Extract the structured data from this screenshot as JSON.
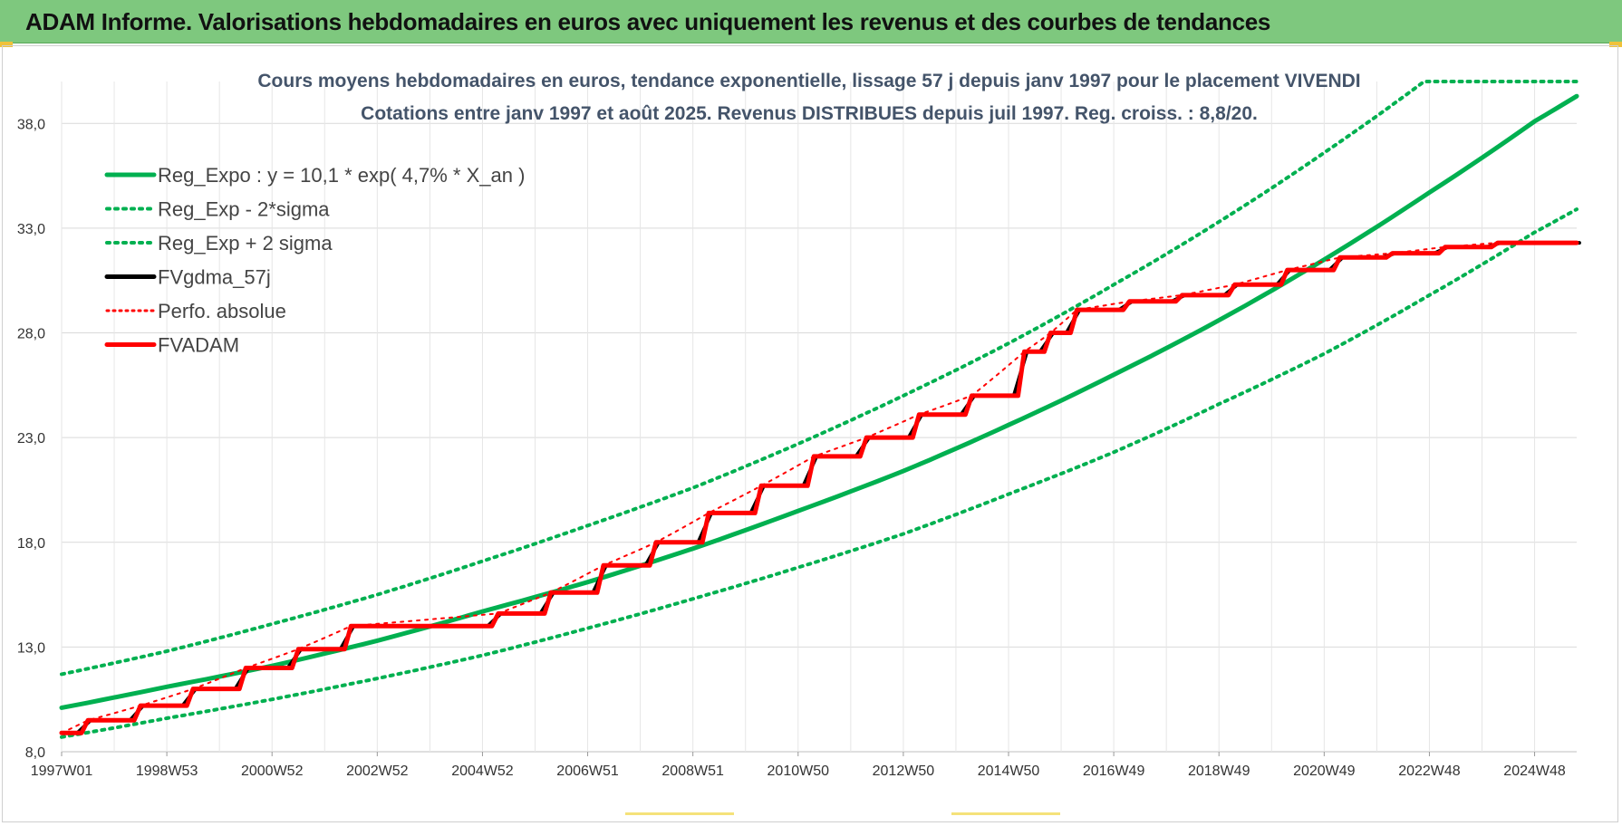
{
  "banner": {
    "title": "ADAM Informe. Valorisations hebdomadaires en euros avec uniquement les revenus et des courbes de tendances"
  },
  "colors": {
    "banner_bg": "#7ec87e",
    "trend_green": "#00b050",
    "red": "#ff0000",
    "black": "#000000",
    "title_color": "#44546a"
  },
  "chart_data": {
    "type": "line",
    "title": "Cours moyens hebdomadaires en euros, tendance exponentielle, lissage 57 j depuis janv 1997 pour le placement VIVENDI",
    "subtitle": "Cotations entre janv 1997 et août 2025.  Revenus DISTRIBUES depuis juil 1997.  Reg. croiss. : 8,8/20.",
    "xlabel": "",
    "ylabel": "",
    "xlim": [
      1997.0,
      2025.8
    ],
    "ylim": [
      8.0,
      40.0
    ],
    "y_ticks": [
      "8,0",
      "13,0",
      "18,0",
      "23,0",
      "28,0",
      "33,0",
      "38,0"
    ],
    "x_ticks": [
      {
        "label": "1997W01",
        "x": 1997.0
      },
      {
        "label": "1998W53",
        "x": 1999.0
      },
      {
        "label": "2000W52",
        "x": 2001.0
      },
      {
        "label": "2002W52",
        "x": 2003.0
      },
      {
        "label": "2004W52",
        "x": 2005.0
      },
      {
        "label": "2006W51",
        "x": 2007.0
      },
      {
        "label": "2008W51",
        "x": 2009.0
      },
      {
        "label": "2010W50",
        "x": 2011.0
      },
      {
        "label": "2012W50",
        "x": 2013.0
      },
      {
        "label": "2014W50",
        "x": 2015.0
      },
      {
        "label": "2016W49",
        "x": 2017.0
      },
      {
        "label": "2018W49",
        "x": 2019.0
      },
      {
        "label": "2020W49",
        "x": 2021.0
      },
      {
        "label": "2022W48",
        "x": 2023.0
      },
      {
        "label": "2024W48",
        "x": 2025.0
      }
    ],
    "grid": "vertical and horizontal",
    "legend_position": "top-left",
    "series": [
      {
        "name": "Reg_Expo : y = 10,1 * exp( 4,7% *  X_an )",
        "style": "solid",
        "color": "#00b050",
        "x": [
          1997.0,
          1999.0,
          2001.0,
          2003.0,
          2005.0,
          2007.0,
          2009.0,
          2011.0,
          2013.0,
          2015.0,
          2017.0,
          2019.0,
          2021.0,
          2023.0,
          2025.0,
          2025.8
        ],
        "values": [
          10.1,
          11.1,
          12.1,
          13.3,
          14.7,
          16.1,
          17.7,
          19.5,
          21.4,
          23.6,
          26.0,
          28.6,
          31.5,
          34.7,
          38.1,
          39.3
        ]
      },
      {
        "name": "Reg_Exp - 2*sigma",
        "style": "dotted",
        "color": "#00b050",
        "x": [
          1997.0,
          1999.0,
          2001.0,
          2003.0,
          2005.0,
          2007.0,
          2009.0,
          2011.0,
          2013.0,
          2015.0,
          2017.0,
          2019.0,
          2021.0,
          2023.0,
          2025.0,
          2025.8
        ],
        "values": [
          8.7,
          9.6,
          10.5,
          11.5,
          12.6,
          13.9,
          15.3,
          16.8,
          18.4,
          20.3,
          22.3,
          24.6,
          27.0,
          29.8,
          32.8,
          33.9
        ]
      },
      {
        "name": "Reg_Exp + 2 sigma",
        "style": "dotted",
        "color": "#00b050",
        "x": [
          1997.0,
          1999.0,
          2001.0,
          2003.0,
          2005.0,
          2007.0,
          2009.0,
          2011.0,
          2013.0,
          2015.0,
          2017.0,
          2019.0,
          2021.0,
          2022.9,
          2025.8
        ],
        "values": [
          11.7,
          12.8,
          14.1,
          15.5,
          17.1,
          18.8,
          20.6,
          22.7,
          25.0,
          27.5,
          30.3,
          33.3,
          36.6,
          40.0,
          40.0
        ]
      },
      {
        "name": "FVgdma_57j",
        "style": "solid",
        "color": "#000000",
        "x": [
          1997.0,
          1997.5,
          1998.5,
          1999.5,
          2000.5,
          2001.5,
          2002.5,
          2005.3,
          2006.3,
          2007.3,
          2008.3,
          2009.3,
          2010.3,
          2011.3,
          2012.3,
          2013.3,
          2014.3,
          2015.3,
          2015.8,
          2016.3,
          2017.3,
          2018.3,
          2019.3,
          2020.3,
          2021.3,
          2022.3,
          2023.3,
          2024.3,
          2025.8
        ],
        "values": [
          8.9,
          9.5,
          10.2,
          11.0,
          12.0,
          12.9,
          14.0,
          14.6,
          15.6,
          16.9,
          18.0,
          19.4,
          20.7,
          22.1,
          23.0,
          24.1,
          25.0,
          27.1,
          28.0,
          29.1,
          29.5,
          29.8,
          30.3,
          31.0,
          31.6,
          31.8,
          32.1,
          32.3,
          32.3
        ]
      },
      {
        "name": "Perfo. absolue",
        "style": "dotted",
        "color": "#ff0000",
        "x": [
          1997.0,
          1997.5,
          1998.5,
          1999.5,
          2000.5,
          2001.5,
          2002.5,
          2005.3,
          2006.3,
          2007.3,
          2008.3,
          2009.3,
          2010.3,
          2011.3,
          2012.3,
          2013.3,
          2014.3,
          2015.3,
          2015.8,
          2016.3,
          2017.3,
          2018.3,
          2019.3,
          2020.3,
          2021.3,
          2022.3,
          2023.3,
          2024.3,
          2025.8
        ],
        "values": [
          8.9,
          9.5,
          10.2,
          11.0,
          12.0,
          12.9,
          14.0,
          14.6,
          15.6,
          16.9,
          18.0,
          19.4,
          20.7,
          22.1,
          23.0,
          24.1,
          25.0,
          27.1,
          28.0,
          29.1,
          29.5,
          29.8,
          30.3,
          31.0,
          31.6,
          31.8,
          32.1,
          32.3,
          32.3
        ]
      },
      {
        "name": "FVADAM",
        "style": "step",
        "color": "#ff0000",
        "x": [
          1997.0,
          1997.5,
          1998.5,
          1999.5,
          2000.5,
          2001.5,
          2002.5,
          2005.3,
          2006.3,
          2007.3,
          2008.3,
          2009.3,
          2010.3,
          2011.3,
          2012.3,
          2013.3,
          2014.3,
          2015.3,
          2015.8,
          2016.3,
          2017.3,
          2018.3,
          2019.3,
          2020.3,
          2021.3,
          2022.3,
          2023.3,
          2024.3,
          2025.8
        ],
        "values": [
          8.9,
          9.5,
          10.2,
          11.0,
          12.0,
          12.9,
          14.0,
          14.6,
          15.6,
          16.9,
          18.0,
          19.4,
          20.7,
          22.1,
          23.0,
          24.1,
          25.0,
          27.1,
          28.0,
          29.1,
          29.5,
          29.8,
          30.3,
          31.0,
          31.6,
          31.8,
          32.1,
          32.3,
          32.3
        ]
      }
    ]
  }
}
